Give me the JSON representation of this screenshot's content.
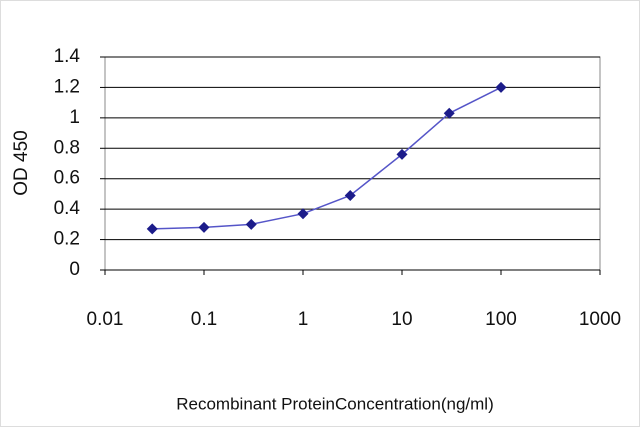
{
  "chart_data": {
    "type": "line",
    "x_label": "Recombinant ProteinConcentration(ng/ml)",
    "y_label": "OD 450",
    "x": [
      0.03,
      0.1,
      0.3,
      1,
      3,
      10,
      30,
      100
    ],
    "series": [
      {
        "name": "OD 450",
        "color": "#1c1c8a",
        "values": [
          0.27,
          0.28,
          0.3,
          0.37,
          0.49,
          0.76,
          1.03,
          1.2
        ]
      }
    ],
    "xlim": [
      0.01,
      1000
    ],
    "xticks": [
      0.01,
      0.1,
      1,
      10,
      100,
      1000
    ],
    "xscale": "log",
    "ylim": [
      0,
      1.4
    ],
    "yticks": [
      0,
      0.2,
      0.4,
      0.6,
      0.8,
      1,
      1.2,
      1.4
    ],
    "grid": true,
    "legend": false
  }
}
